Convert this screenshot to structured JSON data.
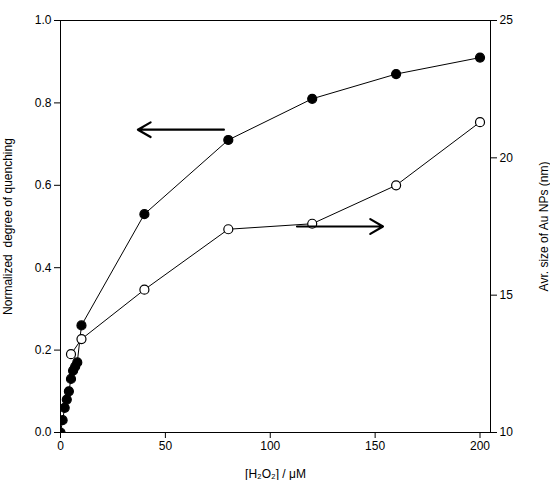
{
  "chart_data": {
    "type": "line",
    "xlabel": "[H₂O₂] / μM",
    "ylabel": "Normalized  degree of quenching",
    "y2label": "Avr. size of Au NPs (nm)",
    "xlim": [
      0,
      205
    ],
    "xticks": [
      0,
      50,
      100,
      150,
      200
    ],
    "ylim": [
      0.0,
      1.0
    ],
    "yticks": [
      {
        "value": 0.0,
        "label": "0.0"
      },
      0.2,
      0.4,
      0.6,
      0.8,
      {
        "value": 1.0,
        "label": "1.0"
      }
    ],
    "y2lim": [
      10,
      25
    ],
    "y2ticks": [
      10,
      15,
      20,
      25
    ],
    "series": [
      {
        "x": [
          0,
          1,
          2,
          3,
          4,
          5,
          6,
          7,
          8,
          10,
          40,
          80,
          120,
          160,
          200
        ],
        "values": [
          0.0,
          0.03,
          0.06,
          0.08,
          0.1,
          0.13,
          0.15,
          0.16,
          0.17,
          0.26,
          0.53,
          0.71,
          0.81,
          0.87,
          0.91
        ],
        "color": "black",
        "marker": "circle"
      },
      {
        "x": [
          5,
          10,
          40,
          80,
          120,
          160,
          200
        ],
        "values": [
          12.85,
          13.4,
          15.2,
          17.4,
          17.6,
          19.0,
          21.3
        ],
        "color": "black",
        "marker": "circle-open",
        "axis": "y2"
      }
    ]
  }
}
